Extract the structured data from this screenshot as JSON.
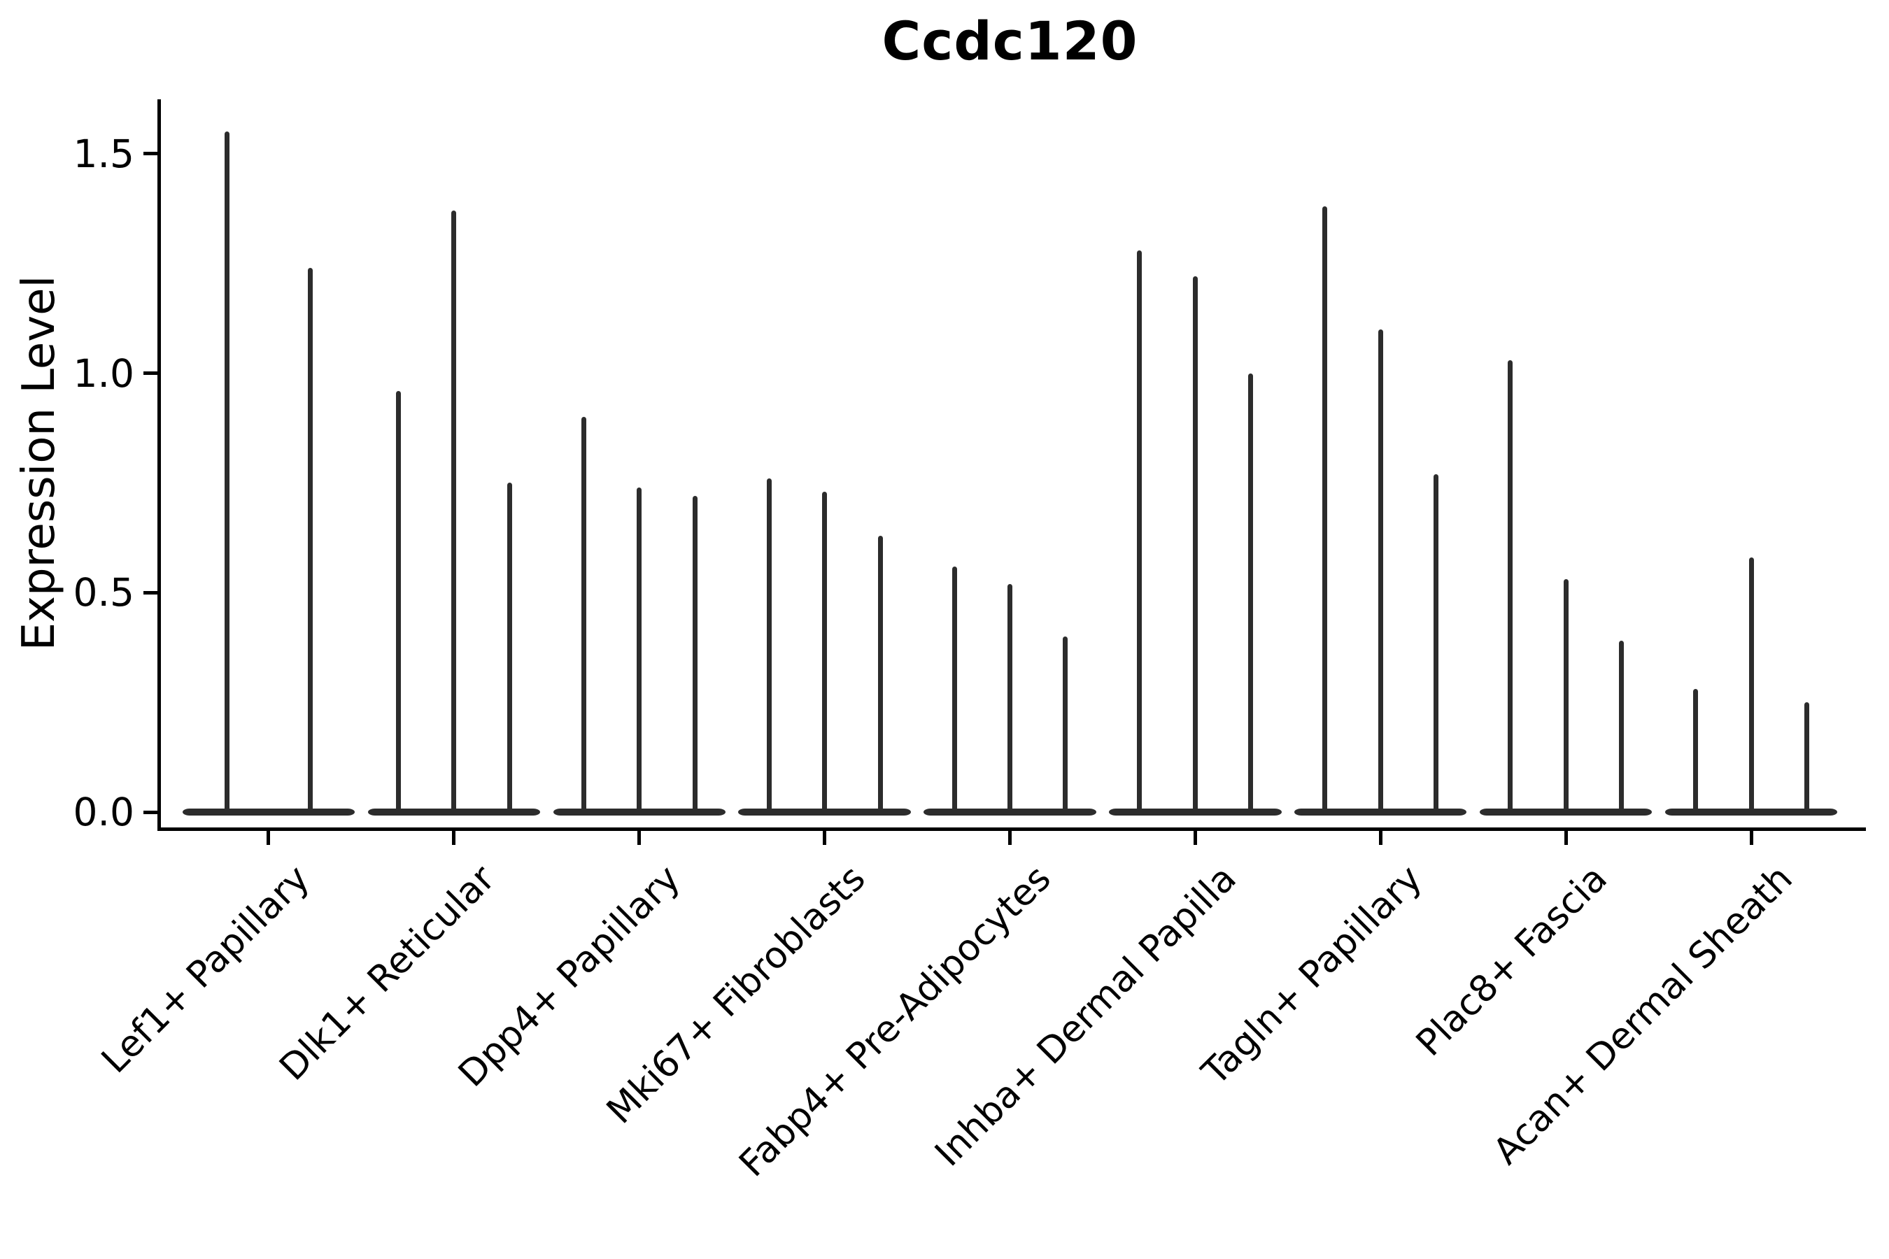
{
  "title": "Ccdc120",
  "y_axis": {
    "label": "Expression Level",
    "tick_labels": [
      "0.0",
      "0.5",
      "1.0",
      "1.5"
    ]
  },
  "style": {
    "violin_color": "#2c2c2c",
    "axis_color": "#000000",
    "text_color": "#000000",
    "background": "#ffffff"
  },
  "chart_data": {
    "type": "violin",
    "title": "Ccdc120",
    "xlabel": "",
    "ylabel": "Expression Level",
    "ylim": [
      -0.04,
      1.63
    ],
    "yticks": [
      0.0,
      0.5,
      1.0,
      1.5
    ],
    "grid": false,
    "legend": "none",
    "note": "Violins collapse to a flat base at 0 with a thin spike up to each group's maximum expression value",
    "categories": [
      "Lef1+ Papillary",
      "Dlk1+ Reticular",
      "Dpp4+ Papillary",
      "Mki67+ Fibroblasts",
      "Fabp4+ Pre-Adipocytes",
      "Inhba+ Dermal Papilla",
      "Tagln+ Papillary",
      "Plac8+ Fascia",
      "Acan+ Dermal Sheath"
    ],
    "groups": [
      {
        "category": "Lef1+ Papillary",
        "spike_max_values": [
          1.55,
          1.24
        ]
      },
      {
        "category": "Dlk1+ Reticular",
        "spike_max_values": [
          0.96,
          1.37,
          0.75
        ]
      },
      {
        "category": "Dpp4+ Papillary",
        "spike_max_values": [
          0.9,
          0.74,
          0.72
        ]
      },
      {
        "category": "Mki67+ Fibroblasts",
        "spike_max_values": [
          0.76,
          0.73,
          0.63
        ]
      },
      {
        "category": "Fabp4+ Pre-Adipocytes",
        "spike_max_values": [
          0.56,
          0.52,
          0.4
        ]
      },
      {
        "category": "Inhba+ Dermal Papilla",
        "spike_max_values": [
          1.28,
          1.22,
          1.0
        ]
      },
      {
        "category": "Tagln+ Papillary",
        "spike_max_values": [
          1.38,
          1.1,
          0.77
        ]
      },
      {
        "category": "Plac8+ Fascia",
        "spike_max_values": [
          1.03,
          0.53,
          0.39
        ]
      },
      {
        "category": "Acan+ Dermal Sheath",
        "spike_max_values": [
          0.28,
          0.58,
          0.25
        ]
      }
    ]
  }
}
